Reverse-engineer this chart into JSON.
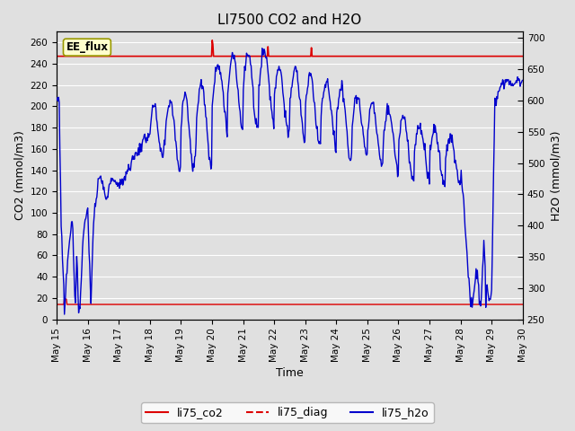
{
  "title": "LI7500 CO2 and H2O",
  "xlabel": "Time",
  "ylabel_left": "CO2 (mmol/m3)",
  "ylabel_right": "H2O (mmol/m3)",
  "ylim_left": [
    0,
    270
  ],
  "ylim_right": [
    250,
    710
  ],
  "bg_color": "#e0e0e0",
  "plot_bg_color": "#e0e0e0",
  "annotation_text": "EE_flux",
  "annotation_box_color": "#ffffcc",
  "annotation_box_edge": "#999900",
  "x_tick_labels": [
    "May 15",
    "May 16",
    "May 17",
    "May 18",
    "May 19",
    "May 20",
    "May 21",
    "May 22",
    "May 23",
    "May 24",
    "May 25",
    "May 26",
    "May 27",
    "May 28",
    "May 29",
    "May 30"
  ],
  "legend_labels": [
    "li75_co2",
    "li75_diag",
    "li75_h2o"
  ],
  "legend_colors": [
    "#dd0000",
    "#dd0000",
    "#0000cc"
  ],
  "co2_color": "#dd0000",
  "diag_color": "#dd0000",
  "h2o_color": "#0000cc",
  "grid_color": "#ffffff",
  "title_fontsize": 11,
  "axis_label_fontsize": 9,
  "tick_fontsize": 7.5,
  "legend_fontsize": 9
}
